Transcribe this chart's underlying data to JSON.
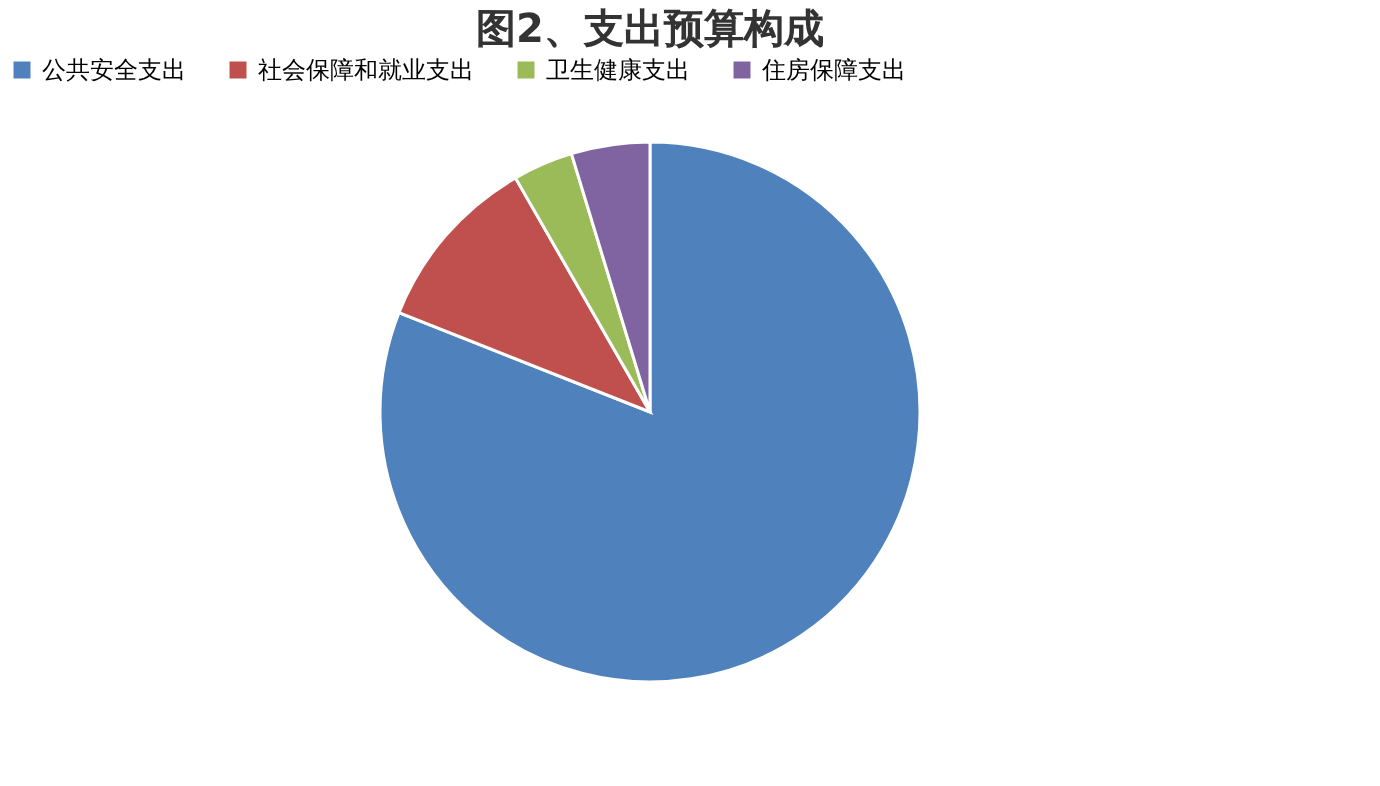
{
  "chart_data": {
    "type": "pie",
    "title": "图2、支出预算构成",
    "categories": [
      "公共安全支出",
      "社会保障和就业支出",
      "卫生健康支出",
      "住房保障支出"
    ],
    "values": [
      81.0,
      10.7,
      3.6,
      4.7
    ],
    "colors": [
      "#4f81bd",
      "#c0504d",
      "#9bbb59",
      "#8064a2"
    ],
    "legend": "top"
  }
}
